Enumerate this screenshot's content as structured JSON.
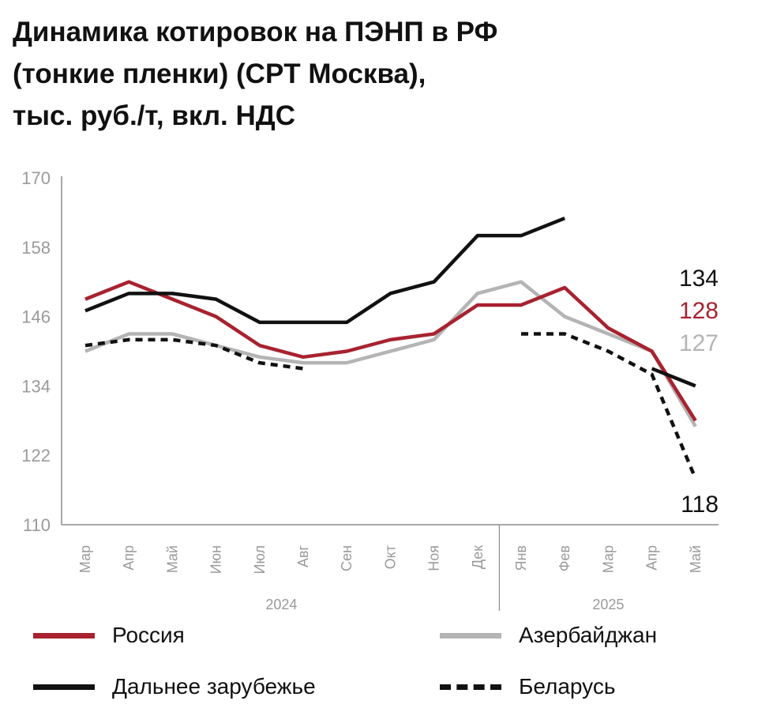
{
  "title_lines": [
    "Динамика котировок на ПЭНП в РФ",
    "(тонкие пленки) (CPT Москва),",
    "тыс. руб./т, вкл. НДС"
  ],
  "colors": {
    "russia": "#a8222f",
    "azerbaijan": "#b4b4b4",
    "far_abroad": "#111111",
    "belarus": "#111111",
    "axis_text": "#9a9a9a",
    "axis_line": "#8c8c8c"
  },
  "chart_data": {
    "type": "line",
    "title": "Динамика котировок на ПЭНП в РФ (тонкие пленки) (CPT Москва), тыс. руб./т, вкл. НДС",
    "categories": [
      "Мар",
      "Апр",
      "Май",
      "Июн",
      "Июл",
      "Авг",
      "Сен",
      "Окт",
      "Ноя",
      "Дек",
      "Янв",
      "Фев",
      "Мар",
      "Апр",
      "Май"
    ],
    "year_groups": [
      {
        "label": "2024",
        "from": 0,
        "to": 9
      },
      {
        "label": "2025",
        "from": 10,
        "to": 14
      }
    ],
    "ylim": [
      110,
      170
    ],
    "yticks": [
      "110",
      "122",
      "134",
      "146",
      "158",
      "170"
    ],
    "grid": false,
    "legend_position": "bottom",
    "series": [
      {
        "name": "Россия",
        "key": "russia",
        "style": "solid",
        "values": [
          149,
          152,
          149,
          146,
          141,
          139,
          140,
          142,
          143,
          148,
          148,
          151,
          144,
          140,
          128
        ],
        "end_label": "128"
      },
      {
        "name": "Азербайджан",
        "key": "azerbaijan",
        "style": "solid",
        "values": [
          140,
          143,
          143,
          141,
          139,
          138,
          138,
          140,
          142,
          150,
          152,
          146,
          143,
          140,
          127
        ],
        "end_label": "127"
      },
      {
        "name": "Дальнее зарубежье",
        "key": "far_abroad",
        "style": "solid",
        "values": [
          147,
          150,
          150,
          149,
          145,
          145,
          145,
          150,
          152,
          160,
          160,
          163,
          null,
          137,
          134
        ],
        "end_label": "134"
      },
      {
        "name": "Беларусь",
        "key": "belarus",
        "style": "dashed",
        "values": [
          141,
          142,
          142,
          141,
          138,
          137,
          null,
          null,
          null,
          null,
          143,
          143,
          140,
          136,
          118
        ],
        "end_label": "118"
      }
    ]
  },
  "legend": [
    {
      "label": "Россия",
      "key": "russia",
      "style": "solid"
    },
    {
      "label": "Азербайджан",
      "key": "azerbaijan",
      "style": "solid"
    },
    {
      "label": "Дальнее зарубежье",
      "key": "far_abroad",
      "style": "solid"
    },
    {
      "label": "Беларусь",
      "key": "belarus",
      "style": "dashed"
    }
  ]
}
